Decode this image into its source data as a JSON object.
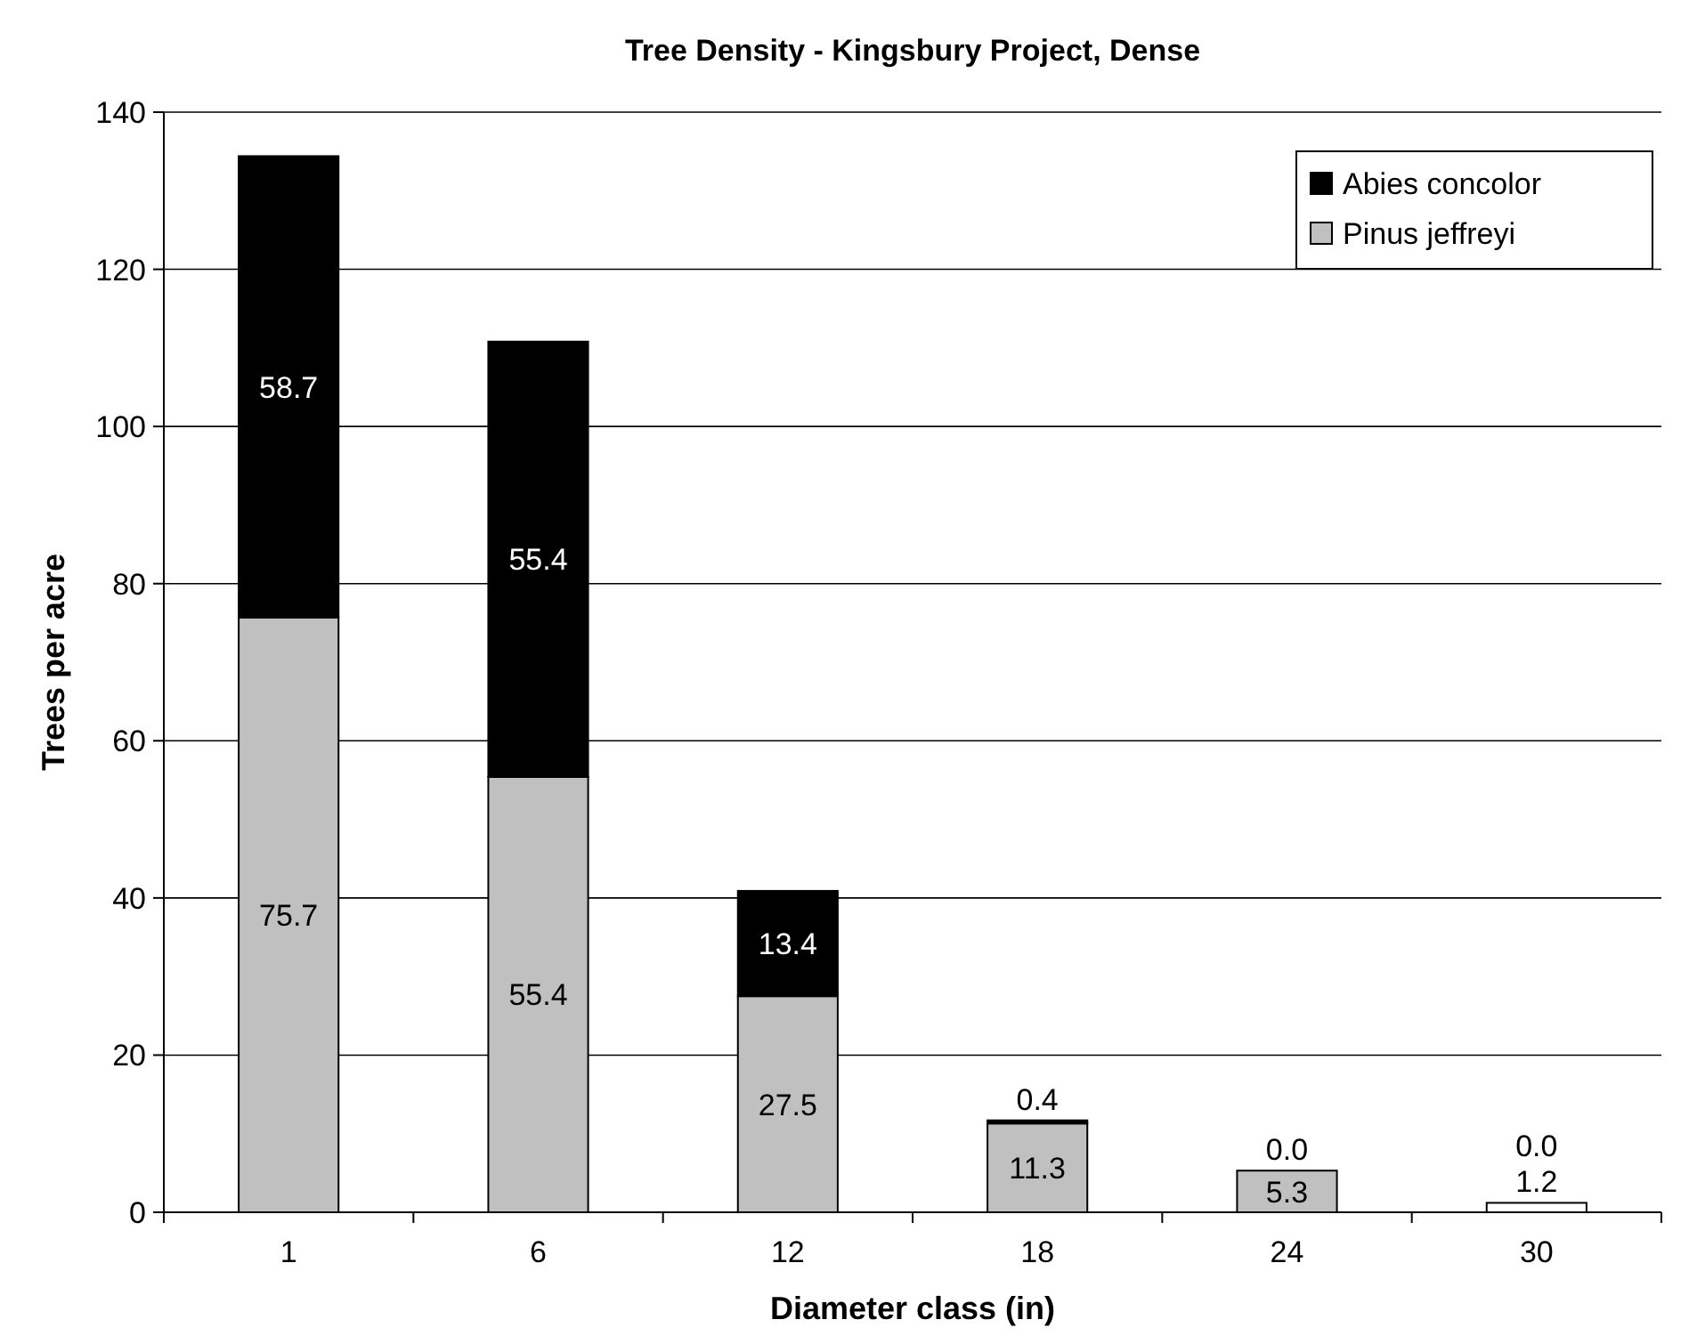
{
  "chart_data": {
    "type": "bar",
    "title": "Tree Density - Kingsbury Project, Dense",
    "xlabel": "Diameter class (in)",
    "ylabel": "Trees per acre",
    "categories": [
      "1",
      "6",
      "12",
      "18",
      "24",
      "30"
    ],
    "stacked": true,
    "grid": "y",
    "legend": "top right",
    "ylim": [
      0,
      140
    ],
    "yticks": [
      0,
      20,
      40,
      60,
      80,
      100,
      120,
      140
    ],
    "series": [
      {
        "name": "Pinus jeffreyi",
        "color": "#c0c0c0",
        "colors": [
          "#c0c0c0",
          "#c0c0c0",
          "#c0c0c0",
          "#c0c0c0",
          "#c0c0c0",
          "#ffffff"
        ],
        "values": [
          75.7,
          55.4,
          27.5,
          11.3,
          5.3,
          1.2
        ],
        "value_labels": [
          "75.7",
          "55.4",
          "27.5",
          "11.3",
          "5.3",
          "1.2"
        ]
      },
      {
        "name": "Abies concolor",
        "color": "#000000",
        "values": [
          58.7,
          55.4,
          13.4,
          0.4,
          0.0,
          0.0
        ],
        "value_labels": [
          "58.7",
          "55.4",
          "13.4",
          "0.4",
          "0.0",
          "0.0"
        ]
      }
    ]
  }
}
